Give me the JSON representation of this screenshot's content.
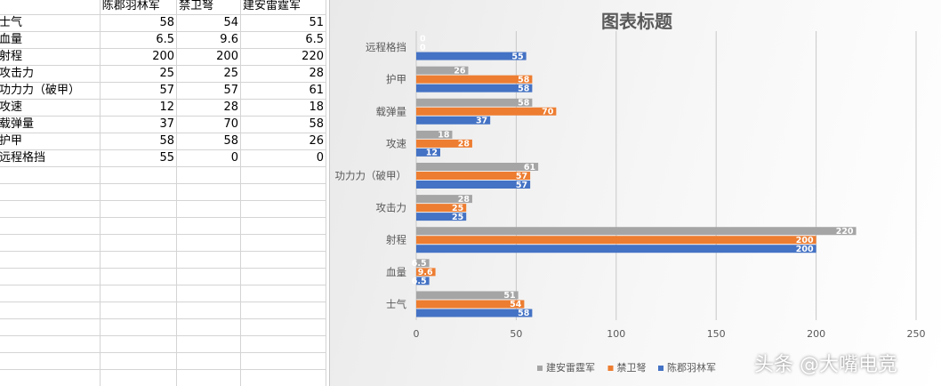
{
  "sheet": {
    "header": [
      "",
      "陈郡羽林军",
      "禁卫弩",
      "建安雷霆军"
    ],
    "rows": [
      [
        "士气",
        "58",
        "54",
        "51"
      ],
      [
        "血量",
        "6.5",
        "9.6",
        "6.5"
      ],
      [
        "射程",
        "200",
        "200",
        "220"
      ],
      [
        "攻击力",
        "25",
        "25",
        "28"
      ],
      [
        "功力力（破甲）",
        "57",
        "57",
        "61"
      ],
      [
        "攻速",
        "12",
        "28",
        "18"
      ],
      [
        "载弹量",
        "37",
        "70",
        "58"
      ],
      [
        "护甲",
        "58",
        "58",
        "26"
      ],
      [
        "远程格挡",
        "55",
        "0",
        "0"
      ]
    ],
    "empty_rows": 14
  },
  "chart_data": {
    "type": "bar",
    "orientation": "horizontal",
    "title": "图表标题",
    "categories": [
      "士气",
      "血量",
      "射程",
      "攻击力",
      "功力力（破甲）",
      "攻速",
      "载弹量",
      "护甲",
      "远程格挡"
    ],
    "series": [
      {
        "name": "陈郡羽林军",
        "color": "#4472c4",
        "values": [
          58,
          6.5,
          200,
          25,
          57,
          12,
          37,
          58,
          55
        ]
      },
      {
        "name": "禁卫弩",
        "color": "#ed7d31",
        "values": [
          54,
          9.6,
          200,
          25,
          57,
          28,
          70,
          58,
          0
        ]
      },
      {
        "name": "建安雷霆军",
        "color": "#a5a5a5",
        "values": [
          51,
          6.5,
          220,
          28,
          61,
          18,
          58,
          26,
          0
        ]
      }
    ],
    "xlim": [
      0,
      250
    ],
    "xticks": [
      0,
      50,
      100,
      150,
      200,
      250
    ],
    "grid": true,
    "data_labels": true,
    "legend_position": "bottom-right"
  },
  "watermark": "头条 @大嘴电竞"
}
